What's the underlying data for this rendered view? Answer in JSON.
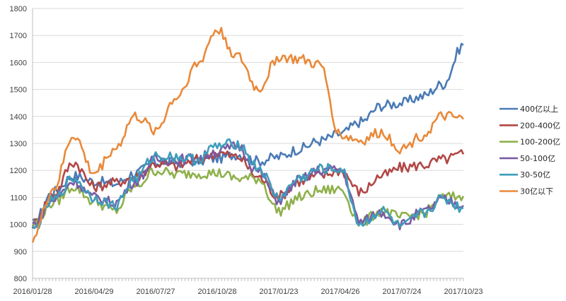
{
  "chart_data": {
    "type": "line",
    "title": "",
    "xlabel": "",
    "ylabel": "",
    "ylim": [
      800,
      1800
    ],
    "yticks": [
      800,
      900,
      1000,
      1100,
      1200,
      1300,
      1400,
      1500,
      1600,
      1700,
      1800
    ],
    "x_tick_labels": [
      "2016/01/28",
      "2016/04/29",
      "2016/07/27",
      "2016/10/28",
      "2017/01/23",
      "2017/04/26",
      "2017/07/24",
      "2017/10/23"
    ],
    "grid": "horizontal",
    "legend_position": "right",
    "x": [
      "2016/01/28",
      "2016/02/26",
      "2016/03/29",
      "2016/04/29",
      "2016/05/27",
      "2016/06/28",
      "2016/07/27",
      "2016/08/26",
      "2016/09/27",
      "2016/10/28",
      "2016/11/25",
      "2016/12/23",
      "2017/01/23",
      "2017/02/24",
      "2017/03/24",
      "2017/04/26",
      "2017/05/24",
      "2017/06/23",
      "2017/07/24",
      "2017/08/22",
      "2017/09/20",
      "2017/10/23"
    ],
    "series": [
      {
        "name": "400亿以上",
        "color": "#4a7ab5",
        "values": [
          1000,
          1120,
          1180,
          1160,
          1150,
          1190,
          1230,
          1230,
          1235,
          1245,
          1260,
          1235,
          1250,
          1280,
          1310,
          1335,
          1380,
          1440,
          1450,
          1475,
          1520,
          1665
        ]
      },
      {
        "name": "200-400亿",
        "color": "#b14745",
        "values": [
          1000,
          1110,
          1230,
          1140,
          1155,
          1175,
          1225,
          1215,
          1240,
          1265,
          1250,
          1175,
          1105,
          1160,
          1180,
          1200,
          1120,
          1180,
          1210,
          1220,
          1240,
          1260
        ]
      },
      {
        "name": "100-200亿",
        "color": "#8fb04b",
        "values": [
          1000,
          1080,
          1140,
          1085,
          1050,
          1140,
          1200,
          1185,
          1190,
          1190,
          1170,
          1170,
          1050,
          1100,
          1125,
          1130,
          1005,
          1050,
          1025,
          1040,
          1100,
          1105
        ]
      },
      {
        "name": "50-100亿",
        "color": "#7a5ca6",
        "values": [
          1000,
          1090,
          1160,
          1100,
          1080,
          1160,
          1240,
          1240,
          1245,
          1270,
          1290,
          1195,
          1090,
          1165,
          1200,
          1205,
          1010,
          1045,
          1000,
          1045,
          1090,
          1070
        ]
      },
      {
        "name": "30-50亿",
        "color": "#3d9dbb",
        "values": [
          980,
          1090,
          1170,
          1100,
          1070,
          1170,
          1255,
          1250,
          1240,
          1290,
          1300,
          1210,
          1100,
          1170,
          1205,
          1205,
          1000,
          1050,
          990,
          1040,
          1095,
          1060
        ]
      },
      {
        "name": "30亿以下",
        "color": "#e9893a",
        "values": [
          950,
          1130,
          1330,
          1190,
          1280,
          1400,
          1350,
          1470,
          1590,
          1720,
          1620,
          1500,
          1620,
          1610,
          1590,
          1330,
          1310,
          1340,
          1280,
          1330,
          1400,
          1390
        ]
      }
    ]
  }
}
